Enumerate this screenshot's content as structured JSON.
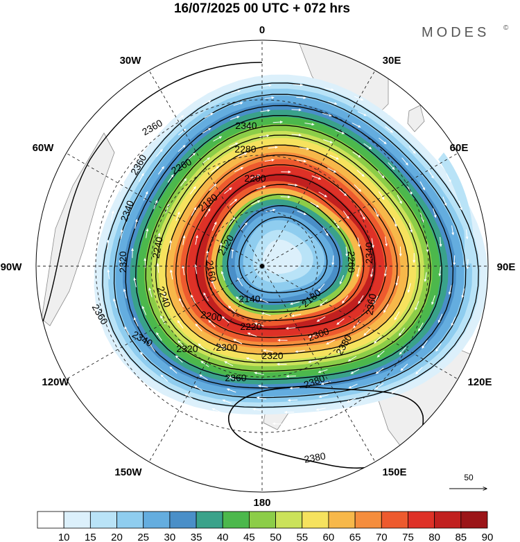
{
  "title": "16/07/2025  00 UTC  + 072 hrs",
  "brand": "MODES",
  "brand_mark": "©",
  "lon_labels": [
    "0",
    "30E",
    "60E",
    "90E",
    "120E",
    "150E",
    "180",
    "150W",
    "120W",
    "90W",
    "60W",
    "30W"
  ],
  "contour_labels": [
    "2120",
    "2140",
    "2160",
    "2180",
    "2200",
    "2220",
    "2240",
    "2260",
    "2280",
    "2300",
    "2320",
    "2340",
    "2360",
    "2380"
  ],
  "colorbar": {
    "ticks": [
      "10",
      "15",
      "20",
      "25",
      "30",
      "35",
      "40",
      "45",
      "50",
      "55",
      "60",
      "65",
      "70",
      "75",
      "80",
      "85",
      "90"
    ],
    "colors": [
      "#ffffff",
      "#dcf0fb",
      "#b9e3f7",
      "#8fcdef",
      "#64addf",
      "#4a8fc8",
      "#3aa28a",
      "#4cb84c",
      "#8ccd48",
      "#cbe25a",
      "#f6e25e",
      "#f7b84a",
      "#f58d3d",
      "#ed5a2e",
      "#de3127",
      "#c1201f",
      "#9b1518"
    ]
  },
  "vector_reference": "50",
  "colors": {
    "land": "#efefef",
    "coast": "#8a8a8a",
    "grid": "#222222",
    "contour": "#000000",
    "vector": "#ffffff"
  }
}
